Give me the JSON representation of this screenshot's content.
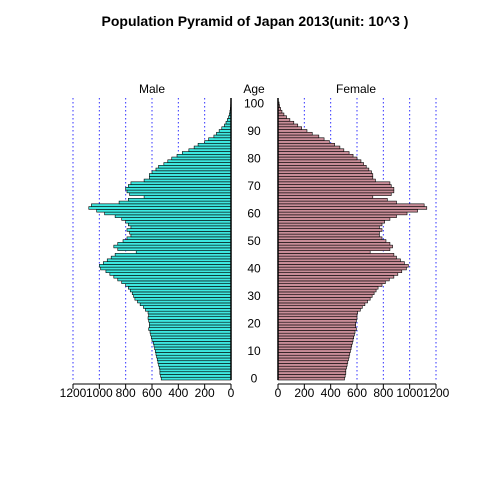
{
  "chart_data": {
    "type": "bar",
    "title": "Population Pyramid of Japan 2013(unit: 10^3 )",
    "panel_labels": {
      "male": "Male",
      "age": "Age",
      "female": "Female"
    },
    "x_ticks_male": [
      "1200",
      "1000",
      "800",
      "600",
      "400",
      "200",
      "0"
    ],
    "x_ticks_female": [
      "0",
      "200",
      "400",
      "600",
      "800",
      "1000",
      "1200"
    ],
    "age_ticks": [
      "0",
      "10",
      "20",
      "30",
      "40",
      "50",
      "60",
      "70",
      "80",
      "90",
      "100"
    ],
    "xlim": [
      0,
      1200
    ],
    "age_range": [
      0,
      100
    ],
    "grid": "dotted vertical lines every 200",
    "colors": {
      "male": "#3ee8e0",
      "female": "#c98d98",
      "grid": "#3030ff",
      "edge": "#000000"
    },
    "ages": [
      0,
      1,
      2,
      3,
      4,
      5,
      6,
      7,
      8,
      9,
      10,
      11,
      12,
      13,
      14,
      15,
      16,
      17,
      18,
      19,
      20,
      21,
      22,
      23,
      24,
      25,
      26,
      27,
      28,
      29,
      30,
      31,
      32,
      33,
      34,
      35,
      36,
      37,
      38,
      39,
      40,
      41,
      42,
      43,
      44,
      45,
      46,
      47,
      48,
      49,
      50,
      51,
      52,
      53,
      54,
      55,
      56,
      57,
      58,
      59,
      60,
      61,
      62,
      63,
      64,
      65,
      66,
      67,
      68,
      69,
      70,
      71,
      72,
      73,
      74,
      75,
      76,
      77,
      78,
      79,
      80,
      81,
      82,
      83,
      84,
      85,
      86,
      87,
      88,
      89,
      90,
      91,
      92,
      93,
      94,
      95,
      96,
      97,
      98,
      99,
      100
    ],
    "series": [
      {
        "name": "Male",
        "values": [
          530,
          535,
          540,
          540,
          545,
          550,
          555,
          560,
          565,
          570,
          575,
          580,
          585,
          590,
          600,
          605,
          610,
          615,
          625,
          620,
          620,
          625,
          630,
          625,
          630,
          650,
          665,
          690,
          710,
          730,
          740,
          750,
          765,
          780,
          800,
          830,
          860,
          890,
          920,
          950,
          990,
          1000,
          970,
          940,
          910,
          880,
          720,
          860,
          890,
          860,
          820,
          790,
          760,
          770,
          790,
          760,
          780,
          800,
          830,
          880,
          960,
          1020,
          1080,
          1060,
          850,
          780,
          660,
          770,
          790,
          800,
          780,
          760,
          660,
          620,
          620,
          600,
          570,
          550,
          510,
          480,
          450,
          410,
          370,
          320,
          280,
          250,
          200,
          170,
          130,
          110,
          90,
          70,
          50,
          38,
          28,
          18,
          12,
          8,
          5,
          3,
          2
        ]
      },
      {
        "name": "Female",
        "values": [
          505,
          510,
          515,
          515,
          520,
          525,
          530,
          535,
          540,
          545,
          550,
          555,
          560,
          565,
          570,
          575,
          580,
          585,
          595,
          590,
          590,
          595,
          600,
          600,
          605,
          625,
          640,
          660,
          680,
          700,
          715,
          730,
          745,
          760,
          790,
          815,
          845,
          880,
          910,
          940,
          975,
          990,
          960,
          930,
          900,
          880,
          700,
          850,
          870,
          850,
          820,
          790,
          770,
          770,
          790,
          770,
          790,
          810,
          850,
          900,
          980,
          1060,
          1130,
          1110,
          900,
          830,
          720,
          860,
          880,
          880,
          860,
          850,
          740,
          720,
          720,
          710,
          690,
          670,
          650,
          630,
          600,
          570,
          540,
          500,
          470,
          430,
          390,
          350,
          310,
          260,
          220,
          180,
          150,
          120,
          90,
          65,
          45,
          30,
          20,
          12,
          8
        ]
      }
    ]
  }
}
